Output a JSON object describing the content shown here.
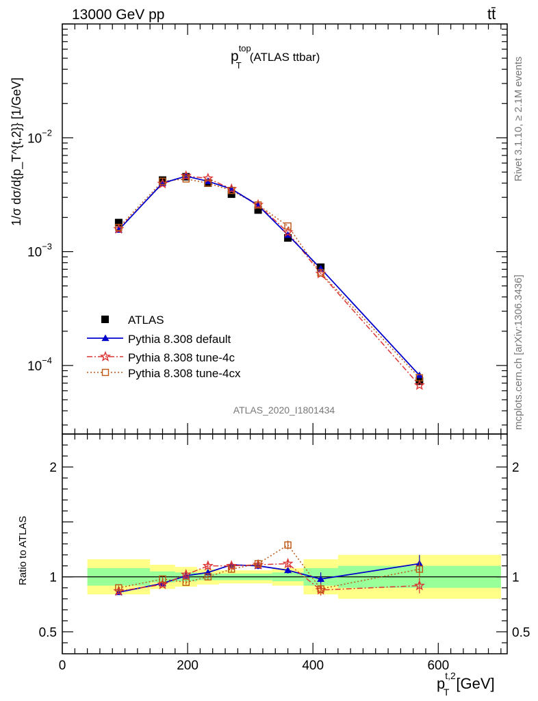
{
  "header": {
    "energy_label": "13000 GeV pp",
    "process": "tt̄"
  },
  "side_labels": {
    "rivet": "Rivet 3.1.10, ≥ 2.1M events",
    "mcplots": "mcplots.cern.ch [arXiv:1306.3436]"
  },
  "watermark": "ATLAS_2020_I1801434",
  "colors": {
    "data": "#000000",
    "default": "#0000cc",
    "tune4c": "#dd3333",
    "tune4cx": "#bb5511",
    "band_inner": "#99ff99",
    "band_outer": "#ffff88"
  },
  "chart_data": [
    {
      "type": "line",
      "title": "p_T^top (ATLAS ttbar)",
      "title_main": "p",
      "title_sub": "T",
      "title_sup": "top",
      "title_suffix": "(ATLAS ttbar)",
      "ylabel": "1/σ dσ/d{p_T^{t,2}} [1/GeV]",
      "yscale": "log",
      "xlim": [
        0,
        710
      ],
      "ylim": [
        2.5e-05,
        0.1
      ],
      "ytick_labels": [
        {
          "value": 0.01,
          "base": "10",
          "exp": "−2"
        },
        {
          "value": 0.001,
          "base": "10",
          "exp": "−3"
        },
        {
          "value": 0.0001,
          "base": "10",
          "exp": "−4"
        }
      ],
      "x": [
        90,
        160,
        197.5,
        232.5,
        270,
        312.5,
        360,
        412.5,
        570
      ],
      "series": [
        {
          "name": "ATLAS",
          "marker": "square",
          "values": [
            0.0018,
            0.00425,
            0.00455,
            0.004,
            0.0032,
            0.00232,
            0.00132,
            0.00073,
            7.3e-05
          ]
        },
        {
          "name": "Pythia 8.308 default",
          "marker": "triangle",
          "values": [
            0.00155,
            0.004,
            0.0046,
            0.00415,
            0.00355,
            0.00255,
            0.0014,
            0.00071,
            8.2e-05
          ]
        },
        {
          "name": "Pythia 8.308 tune-4c",
          "marker": "star",
          "values": [
            0.00158,
            0.00395,
            0.00462,
            0.0044,
            0.00355,
            0.00258,
            0.00148,
            0.00064,
            6.7e-05
          ]
        },
        {
          "name": "Pythia 8.308 tune-4cx",
          "marker": "open-square",
          "values": [
            0.00163,
            0.00415,
            0.00435,
            0.004,
            0.00345,
            0.00257,
            0.00168,
            0.00065,
            7.8e-05
          ]
        }
      ]
    },
    {
      "type": "line",
      "title": "Ratio to ATLAS",
      "ylabel": "Ratio to ATLAS",
      "xlabel": "p_T^{t,2} [GeV]",
      "xlabel_main": "p",
      "xlabel_sub": "T",
      "xlabel_sup": "t,2",
      "xlabel_unit": "[GeV]",
      "xlim": [
        0,
        710
      ],
      "ylim": [
        0.3,
        2.3
      ],
      "xtick_labels": [
        "0",
        "200",
        "400",
        "600"
      ],
      "xtick_values": [
        0,
        200,
        400,
        600
      ],
      "ytick_labels": [
        "2",
        "1",
        "0.5"
      ],
      "ytick_values": [
        2,
        1,
        0.5
      ],
      "bins": [
        {
          "lo": 40,
          "hi": 140,
          "inner": [
            0.92,
            1.08
          ],
          "outer": [
            0.84,
            1.16
          ]
        },
        {
          "lo": 140,
          "hi": 180,
          "inner": [
            0.95,
            1.05
          ],
          "outer": [
            0.89,
            1.11
          ]
        },
        {
          "lo": 180,
          "hi": 215,
          "inner": [
            0.96,
            1.04
          ],
          "outer": [
            0.91,
            1.09
          ]
        },
        {
          "lo": 215,
          "hi": 250,
          "inner": [
            0.97,
            1.03
          ],
          "outer": [
            0.93,
            1.07
          ]
        },
        {
          "lo": 250,
          "hi": 290,
          "inner": [
            0.97,
            1.03
          ],
          "outer": [
            0.94,
            1.06
          ]
        },
        {
          "lo": 290,
          "hi": 335,
          "inner": [
            0.97,
            1.03
          ],
          "outer": [
            0.94,
            1.06
          ]
        },
        {
          "lo": 335,
          "hi": 385,
          "inner": [
            0.96,
            1.04
          ],
          "outer": [
            0.92,
            1.08
          ]
        },
        {
          "lo": 385,
          "hi": 440,
          "inner": [
            0.92,
            1.08
          ],
          "outer": [
            0.84,
            1.16
          ]
        },
        {
          "lo": 440,
          "hi": 700,
          "inner": [
            0.9,
            1.1
          ],
          "outer": [
            0.8,
            1.2
          ]
        }
      ],
      "x": [
        90,
        160,
        197.5,
        232.5,
        270,
        312.5,
        360,
        412.5,
        570
      ],
      "series": [
        {
          "name": "Pythia 8.308 default",
          "marker": "triangle",
          "values": [
            0.86,
            0.94,
            1.01,
            1.04,
            1.11,
            1.1,
            1.06,
            0.98,
            1.12
          ],
          "errors": [
            0.02,
            0.02,
            0.02,
            0.02,
            0.03,
            0.03,
            0.03,
            0.06,
            0.08
          ]
        },
        {
          "name": "Pythia 8.308 tune-4c",
          "marker": "star",
          "values": [
            0.87,
            0.93,
            1.02,
            1.1,
            1.1,
            1.11,
            1.12,
            0.88,
            0.92
          ],
          "errors": [
            0.02,
            0.02,
            0.03,
            0.03,
            0.03,
            0.03,
            0.04,
            0.05,
            0.07
          ]
        },
        {
          "name": "Pythia 8.308 tune-4cx",
          "marker": "open-square",
          "values": [
            0.9,
            0.98,
            0.95,
            1.0,
            1.07,
            1.12,
            1.29,
            0.89,
            1.07
          ],
          "errors": [
            0.02,
            0.02,
            0.02,
            0.03,
            0.03,
            0.03,
            0.04,
            0.05,
            0.07
          ]
        }
      ]
    }
  ]
}
